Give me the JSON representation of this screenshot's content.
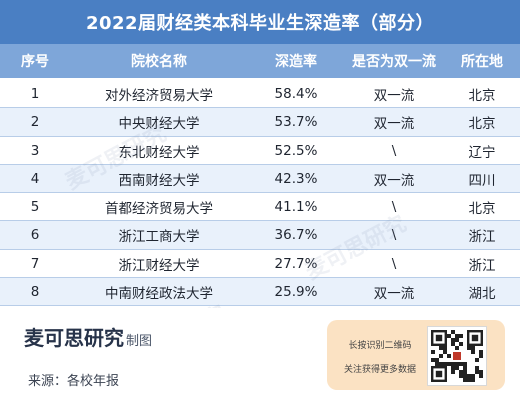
{
  "title": "2022届财经类本科毕业生深造率（部分）",
  "headers": [
    "序号",
    "院校名称",
    "深造率",
    "是否为双一流",
    "所在地"
  ],
  "rows": [
    [
      "1",
      "对外经济贸易大学",
      "58.4%",
      "双一流",
      "北京"
    ],
    [
      "2",
      "中央财经大学",
      "53.7%",
      "双一流",
      "北京"
    ],
    [
      "3",
      "东北财经大学",
      "52.5%",
      "\\",
      "辽宁"
    ],
    [
      "4",
      "西南财经大学",
      "42.3%",
      "双一流",
      "四川"
    ],
    [
      "5",
      "首都经济贸易大学",
      "41.1%",
      "\\",
      "北京"
    ],
    [
      "6",
      "浙江工商大学",
      "36.7%",
      "\\",
      "浙江"
    ],
    [
      "7",
      "浙江财经大学",
      "27.7%",
      "\\",
      "浙江"
    ],
    [
      "8",
      "中南财经政法大学",
      "25.9%",
      "双一流",
      "湖北"
    ]
  ],
  "footer": {
    "brand": "麦可思研究",
    "brand_suffix": "制图",
    "source": "来源：各校年报",
    "qr_line1": "长按识别二维码",
    "qr_line2": "关注获得更多数据"
  },
  "watermark": "麦可思研究",
  "colors": {
    "title_bg": "#4a7fc3",
    "header_bg": "#7ea6d9",
    "stripe": "#e9f1fb",
    "qr_card": "#fbe2c3"
  }
}
